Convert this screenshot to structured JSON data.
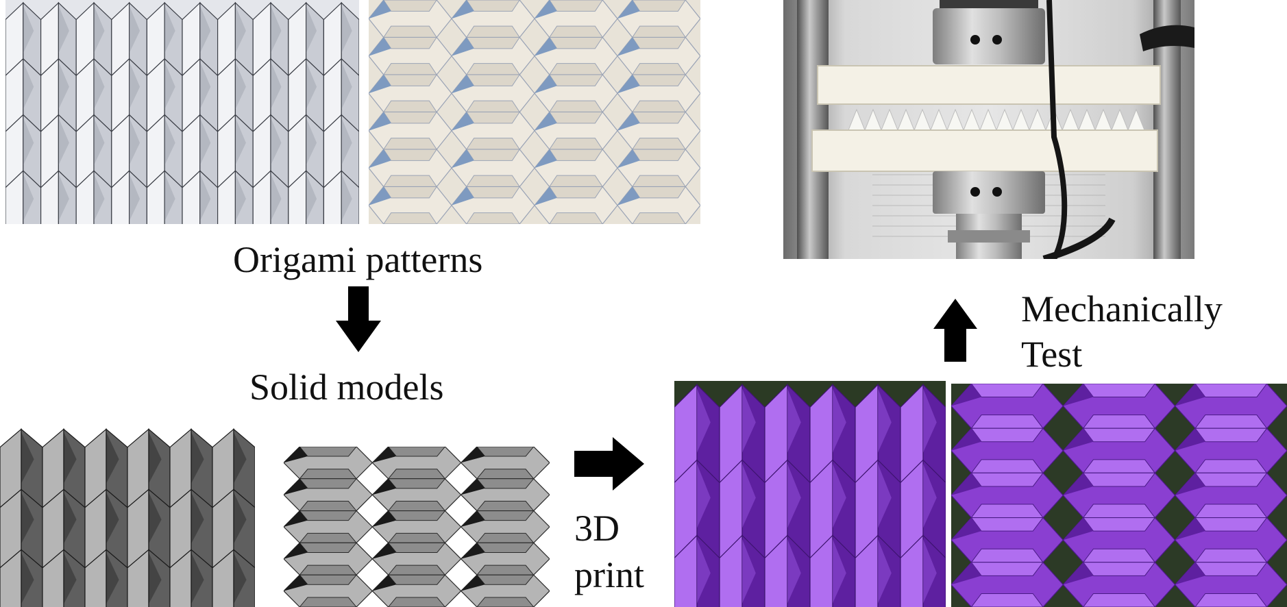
{
  "labels": {
    "origami_patterns": "Origami patterns",
    "solid_models": "Solid models",
    "print_line1": "3D",
    "print_line2": "print",
    "test_line1": "Mechanically",
    "test_line2": "Test"
  },
  "colors": {
    "paper": "#e8e9ee",
    "paper_shadow": "#9ea2ab",
    "solid_light": "#b5b5b5",
    "solid_dark": "#5f5f5f",
    "solid_black": "#1a1a1a",
    "print_purple": "#8a3fd1",
    "print_purple_light": "#b06ef0",
    "print_purple_dark": "#5e20a0",
    "arrow": "#000000"
  },
  "panels": [
    {
      "name": "miura-paper-photo"
    },
    {
      "name": "hexagonal-paper-photo"
    },
    {
      "name": "test-machine-photo"
    },
    {
      "name": "miura-solid-model"
    },
    {
      "name": "hexagonal-solid-model"
    },
    {
      "name": "miura-printed-sample"
    },
    {
      "name": "hexagonal-printed-sample"
    }
  ]
}
